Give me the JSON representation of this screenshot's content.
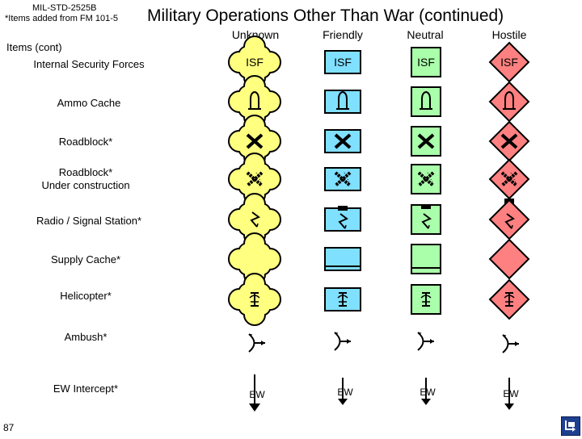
{
  "header": {
    "standard": "MIL-STD-2525B",
    "note": "*Items added from FM 101-5",
    "title": "Military Operations Other Than War (continued)"
  },
  "columns": [
    "Unknown",
    "Friendly",
    "Neutral",
    "Hostile"
  ],
  "section_label": "Items (cont)",
  "rows": [
    {
      "label": "Internal Security Forces",
      "glyph": "isf-text"
    },
    {
      "label": "Ammo Cache",
      "glyph": "ammo-shell-icon"
    },
    {
      "label": "Roadblock*",
      "glyph": "x-cross-icon"
    },
    {
      "label_line1": "Roadblock*",
      "label_line2": "Under construction",
      "glyph": "x-cross-under-construction-icon"
    },
    {
      "label": "Radio / Signal Station*",
      "glyph": "lightning-bolt-icon"
    },
    {
      "label": "Supply Cache*",
      "glyph": "crescent-icon"
    },
    {
      "label": "Helicopter*",
      "glyph": "helicopter-icon"
    },
    {
      "label": "Ambush*",
      "glyph": "ambush-arrow-icon"
    },
    {
      "label": "EW Intercept*",
      "glyph": "ew-text"
    }
  ],
  "symbol_text": {
    "isf": "ISF",
    "ew": "EW"
  },
  "colors": {
    "unknown": "#ffff80",
    "friendly": "#80e0ff",
    "neutral": "#aaffaa",
    "hostile": "#ff8080",
    "home_button": "#1f3f8f"
  },
  "page_number": "87",
  "home_icon": "home-return-icon"
}
